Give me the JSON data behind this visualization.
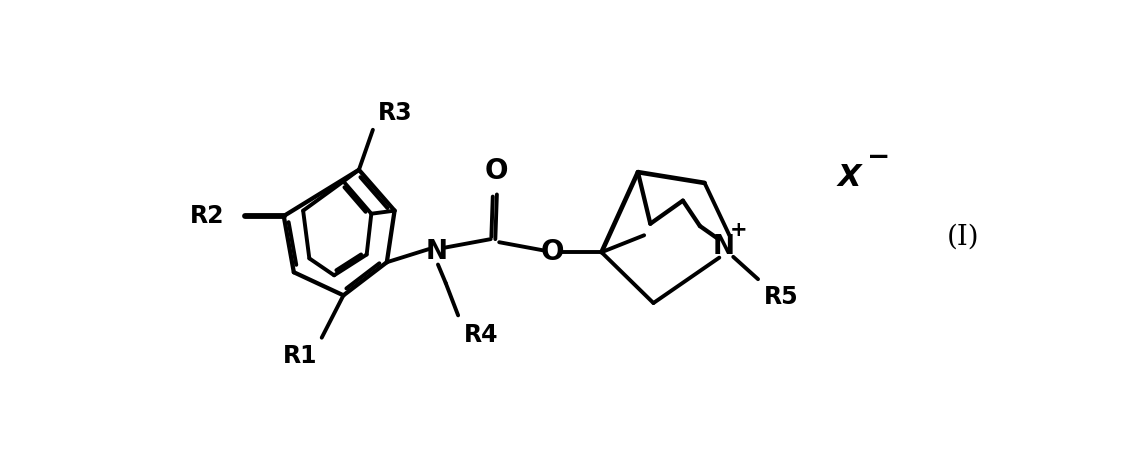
{
  "background_color": "#ffffff",
  "line_color": "#000000",
  "line_width": 2.8,
  "text_fontsize": 17,
  "label_I": "(I)",
  "label_X": "X",
  "label_R1": "R1",
  "label_R2": "R2",
  "label_R3": "R3",
  "label_R4": "R4",
  "label_R5": "R5",
  "label_N_carbamate": "N",
  "label_N_quin": "N",
  "label_O_carbonyl": "O",
  "label_O_ester": "O"
}
